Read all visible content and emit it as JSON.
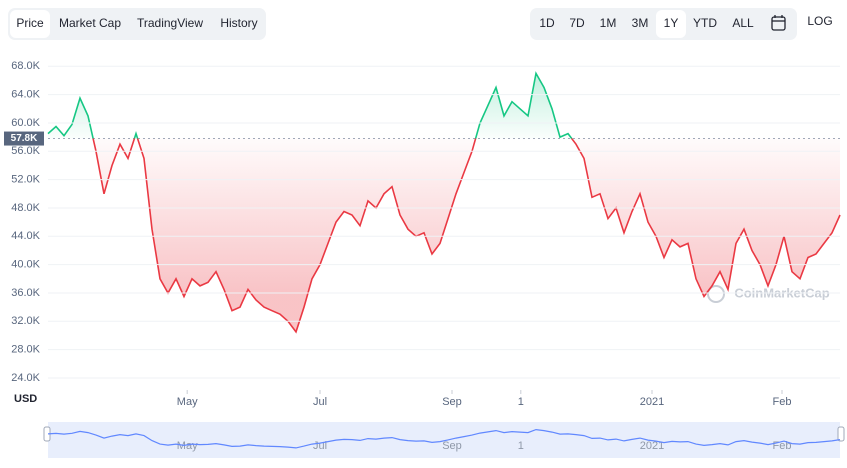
{
  "tabs": [
    "Price",
    "Market Cap",
    "TradingView",
    "History"
  ],
  "ranges": [
    "1D",
    "7D",
    "1M",
    "3M",
    "1Y",
    "YTD",
    "ALL"
  ],
  "log_label": "LOG",
  "watermark": "CoinMarketCap",
  "chart_data": {
    "type": "line",
    "currency": "USD",
    "x": [
      0,
      1,
      2,
      3,
      4,
      5,
      6,
      7,
      8,
      9,
      10,
      11,
      12,
      13,
      14,
      15,
      16,
      17,
      18,
      19,
      20,
      21,
      22,
      23,
      24,
      25,
      26,
      27,
      28,
      29,
      30,
      31,
      32,
      33,
      34,
      35,
      36,
      37,
      38,
      39,
      40,
      41,
      42,
      43,
      44,
      45,
      46,
      47,
      48,
      49,
      50,
      51,
      52,
      53,
      54,
      55,
      56,
      57,
      58,
      59,
      60,
      61,
      62,
      63,
      64,
      65,
      66,
      67,
      68,
      69,
      70,
      71,
      72,
      73,
      74,
      75,
      76,
      77,
      78,
      79,
      80,
      81,
      82,
      83,
      84,
      85,
      86,
      87,
      88,
      89,
      90,
      91,
      92,
      93,
      94,
      95,
      96,
      97,
      98,
      99
    ],
    "values": [
      58500,
      59500,
      58200,
      59800,
      63500,
      61000,
      56000,
      50000,
      54000,
      57000,
      55000,
      58500,
      55000,
      45000,
      38000,
      36000,
      38000,
      35500,
      38000,
      37000,
      37500,
      39000,
      36500,
      33500,
      34000,
      36500,
      35000,
      34000,
      33500,
      33000,
      32000,
      30500,
      34000,
      38000,
      40000,
      43000,
      46000,
      47500,
      47000,
      45500,
      49000,
      48000,
      50000,
      51000,
      47000,
      45000,
      44000,
      44500,
      41500,
      43000,
      46500,
      50000,
      53000,
      56000,
      60000,
      62500,
      65000,
      61000,
      63000,
      62000,
      61000,
      67000,
      65000,
      62000,
      58000,
      58500,
      57000,
      55000,
      49500,
      50000,
      46500,
      48000,
      44500,
      47500,
      50000,
      46000,
      44000,
      41000,
      43500,
      42500,
      43000,
      38000,
      35500,
      37000,
      39000,
      36500,
      43000,
      45000,
      42000,
      40000,
      37000,
      40000,
      44000,
      39000,
      38000,
      41000,
      41500,
      43000,
      44500,
      47000
    ],
    "up_color": "#16c784",
    "down_color": "#ea3943",
    "baseline": {
      "value": 57800,
      "label": "57.8K"
    },
    "xlim": [
      0,
      99
    ],
    "xticks": [
      {
        "value": 17.4,
        "label": "May"
      },
      {
        "value": 34,
        "label": "Jul"
      },
      {
        "value": 50.5,
        "label": "Sep"
      },
      {
        "value": 59.1,
        "label": "1"
      },
      {
        "value": 75.5,
        "label": "2021"
      },
      {
        "value": 91.75,
        "label": "Feb"
      }
    ],
    "ylim": [
      22300,
      70300
    ],
    "yticks": [
      {
        "value": 24000,
        "label": "24.0K"
      },
      {
        "value": 28000,
        "label": "28.0K"
      },
      {
        "value": 32000,
        "label": "32.0K"
      },
      {
        "value": 36000,
        "label": "36.0K"
      },
      {
        "value": 40000,
        "label": "40.0K"
      },
      {
        "value": 44000,
        "label": "44.0K"
      },
      {
        "value": 48000,
        "label": "48.0K"
      },
      {
        "value": 52000,
        "label": "52.0K"
      },
      {
        "value": 56000,
        "label": "56.0K"
      },
      {
        "value": 60000,
        "label": "60.0K"
      },
      {
        "value": 64000,
        "label": "64.0K"
      },
      {
        "value": 68000,
        "label": "68.0K"
      }
    ],
    "grid": true
  }
}
